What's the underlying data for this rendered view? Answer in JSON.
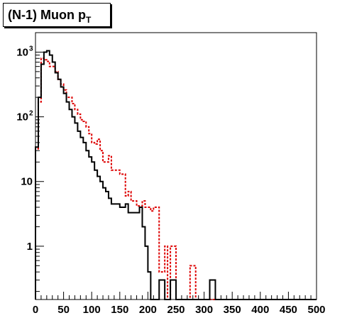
{
  "title": {
    "main": "(N-1) Muon p",
    "subscript": "T"
  },
  "colors": {
    "black_series": "#000000",
    "red_series": "#dd0000",
    "frame": "#000000"
  },
  "chart_data": {
    "type": "histogram",
    "title": "(N-1) Muon pT",
    "xlabel": "",
    "ylabel": "",
    "xlim": [
      0,
      500
    ],
    "ylog": true,
    "ylim": [
      0.15,
      2000
    ],
    "grid": false,
    "bin_width": 5,
    "x_ticks": [
      0,
      50,
      100,
      150,
      200,
      250,
      300,
      350,
      400,
      450,
      500
    ],
    "x_tick_labels": [
      "0",
      "50",
      "100",
      "150",
      "200",
      "250",
      "300",
      "350",
      "400",
      "450",
      "500"
    ],
    "y_ticks": [
      1,
      10,
      100,
      1000
    ],
    "y_tick_labels": [
      {
        "base": "1",
        "exp": ""
      },
      {
        "base": "10",
        "exp": ""
      },
      {
        "base": "10",
        "exp": "2"
      },
      {
        "base": "10",
        "exp": "3"
      }
    ],
    "series": [
      {
        "style": "solid",
        "color": "#000000",
        "values": [
          34,
          200,
          650,
          1000,
          1050,
          900,
          700,
          480,
          380,
          290,
          230,
          170,
          130,
          100,
          80,
          60,
          48,
          40,
          30,
          24,
          20,
          15,
          12,
          10,
          8,
          7,
          5.5,
          4.5,
          4.5,
          4.5,
          4.0,
          4.0,
          4.5,
          3.3,
          3.3,
          3.3,
          3.3,
          4.0,
          2.0,
          1.0,
          0.4,
          0.1,
          0,
          0,
          0.3,
          0.3,
          0,
          0,
          0.3,
          0.3,
          0,
          0.1,
          0.1,
          0.1,
          0,
          0,
          0,
          0,
          0,
          0,
          0.1,
          0.1,
          0.3,
          0.3,
          0,
          0,
          0,
          0,
          0,
          0,
          0,
          0,
          0,
          0,
          0,
          0,
          0,
          0,
          0,
          0,
          0,
          0,
          0,
          0,
          0,
          0,
          0,
          0,
          0,
          0,
          0,
          0,
          0,
          0,
          0,
          0,
          0,
          0,
          0,
          0
        ]
      },
      {
        "style": "dotted",
        "color": "#dd0000",
        "values": [
          32,
          170,
          800,
          760,
          720,
          600,
          600,
          500,
          380,
          320,
          260,
          200,
          200,
          160,
          130,
          110,
          90,
          85,
          70,
          55,
          40,
          38,
          45,
          30,
          20,
          20,
          25,
          15,
          15,
          15,
          13,
          13,
          6,
          7,
          5,
          5,
          4.2,
          4.2,
          5,
          4,
          4,
          3.5,
          4.0,
          4.0,
          0.4,
          0.4,
          1.0,
          0.1,
          1.0,
          1.0,
          0.1,
          0.1,
          0.1,
          0.1,
          0.1,
          0.5,
          0.5,
          0,
          0,
          0,
          0,
          0,
          0,
          0,
          0,
          0,
          0,
          0,
          0,
          0,
          0,
          0,
          0,
          0,
          0,
          0,
          0,
          0,
          0,
          0,
          0,
          0,
          0,
          0,
          0,
          0,
          0,
          0,
          0,
          0,
          0,
          0,
          0,
          0,
          0,
          0,
          0,
          0,
          0,
          0
        ]
      }
    ]
  }
}
